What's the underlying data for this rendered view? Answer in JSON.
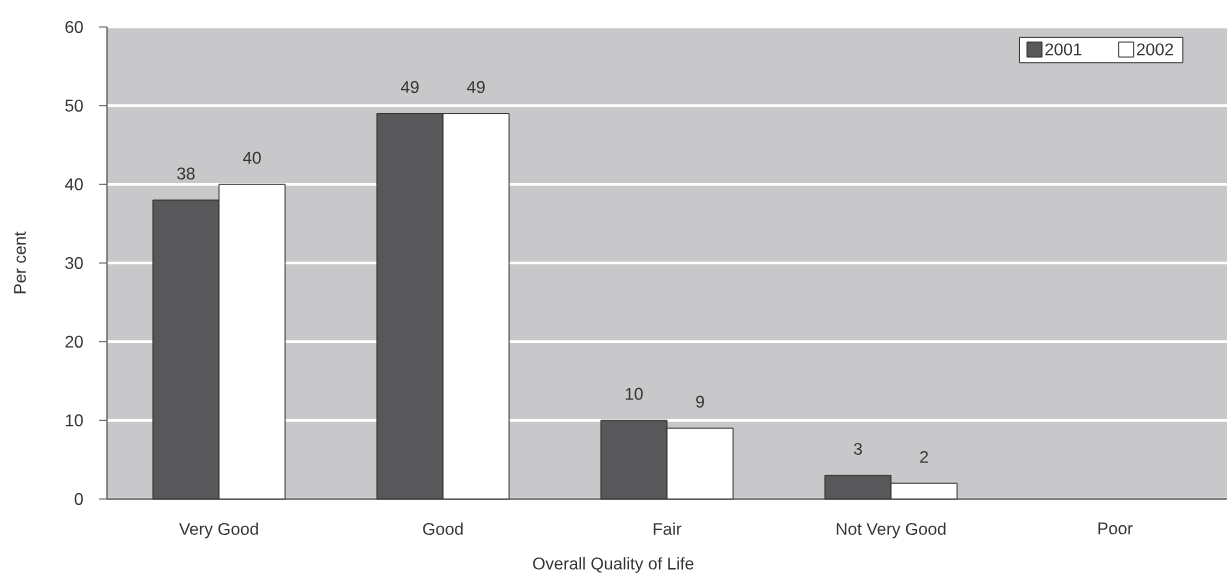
{
  "chart_data": {
    "type": "bar",
    "xlabel": "Overall Quality of Life",
    "ylabel": "Per cent",
    "categories": [
      "Very Good",
      "Good",
      "Fair",
      "Not Very Good",
      "Poor"
    ],
    "series": [
      {
        "name": "2001",
        "color": "#58585a",
        "values": [
          38,
          49,
          10,
          3,
          null
        ]
      },
      {
        "name": "2002",
        "color": "#ffffff",
        "values": [
          40,
          49,
          9,
          2,
          null
        ]
      }
    ],
    "ylim": [
      0,
      60
    ],
    "yticks": [
      0,
      10,
      20,
      30,
      40,
      50,
      60
    ],
    "grid": "y",
    "legend": "top right",
    "data_labels": true
  }
}
